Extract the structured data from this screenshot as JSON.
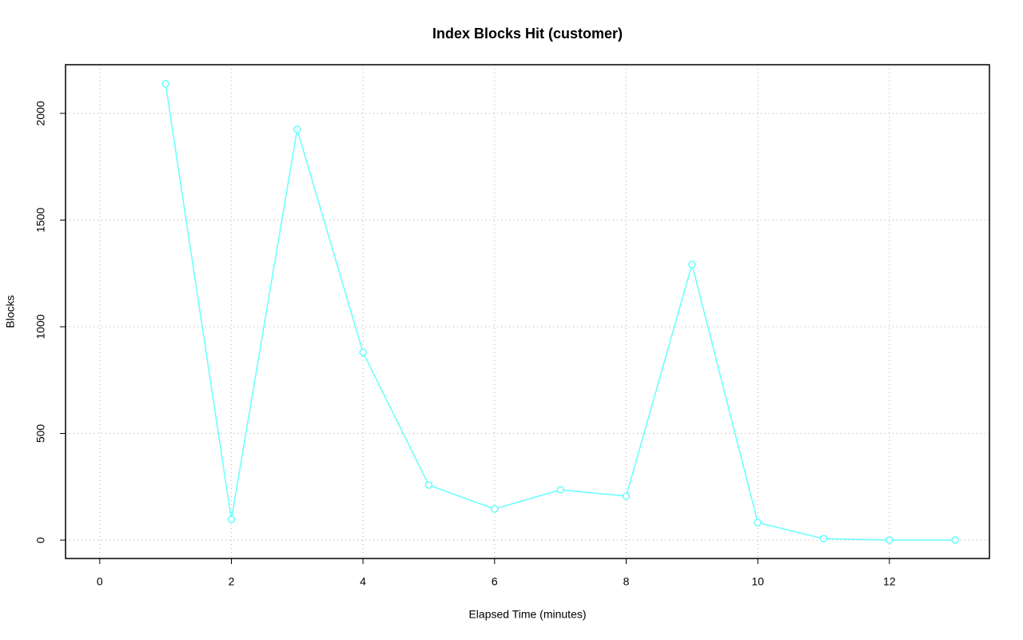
{
  "chart_data": {
    "type": "line",
    "title": "Index Blocks Hit (customer)",
    "x_label": "Elapsed Time (minutes)",
    "y_label": "Blocks",
    "x": [
      1,
      2,
      3,
      4,
      5,
      6,
      7,
      8,
      9,
      10,
      11,
      12,
      13
    ],
    "values": [
      2139,
      97,
      1925,
      880,
      258,
      146,
      236,
      206,
      1292,
      82,
      7,
      0,
      0
    ],
    "color": "#66ffff",
    "xlim": [
      -0.52,
      13.52
    ],
    "xticks": [
      0,
      2,
      4,
      6,
      8,
      10,
      12
    ],
    "ylim": [
      -86,
      2228
    ],
    "yticks": [
      0,
      500,
      1000,
      1500,
      2000
    ],
    "grid": true
  }
}
